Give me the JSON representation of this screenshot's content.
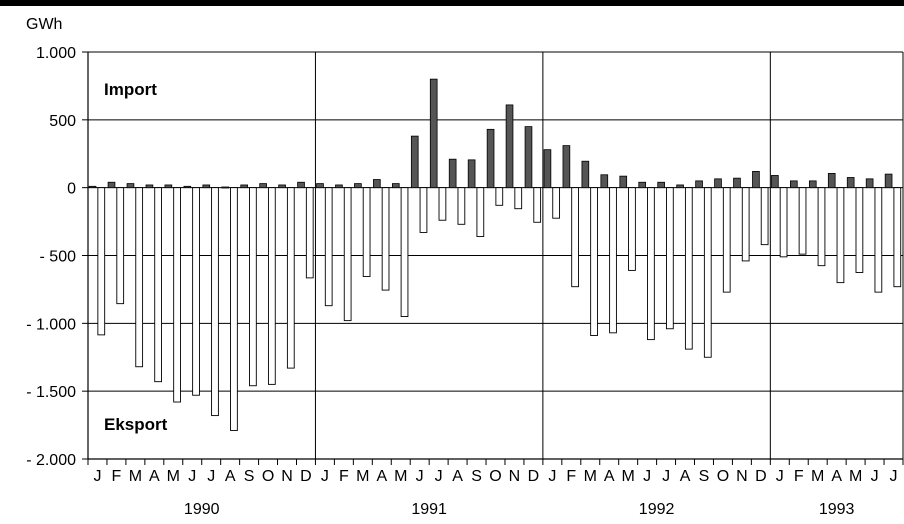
{
  "chart_data": {
    "type": "bar",
    "unit_label": "GWh",
    "annotations": {
      "import": "Import",
      "export": "Eksport"
    },
    "ylim": [
      -2000,
      1000
    ],
    "y_ticks": [
      {
        "value": 1000,
        "label": "1.000"
      },
      {
        "value": 500,
        "label": "500"
      },
      {
        "value": 0,
        "label": "0"
      },
      {
        "value": -500,
        "label": "- 500"
      },
      {
        "value": -1000,
        "label": "- 1.000"
      },
      {
        "value": -1500,
        "label": "- 1.500"
      },
      {
        "value": -2000,
        "label": "- 2.000"
      }
    ],
    "grid": true,
    "months": [
      "J",
      "F",
      "M",
      "A",
      "M",
      "J",
      "J",
      "A",
      "S",
      "O",
      "N",
      "D",
      "J",
      "F",
      "M",
      "A",
      "M",
      "J",
      "J",
      "A",
      "S",
      "O",
      "N",
      "D",
      "J",
      "F",
      "M",
      "A",
      "M",
      "J",
      "J",
      "A",
      "S",
      "O",
      "N",
      "D",
      "J",
      "F",
      "M",
      "A",
      "M",
      "J",
      "J"
    ],
    "years": [
      {
        "label": "1990",
        "start": 0,
        "end": 12
      },
      {
        "label": "1991",
        "start": 12,
        "end": 24
      },
      {
        "label": "1992",
        "start": 24,
        "end": 36
      },
      {
        "label": "1993",
        "start": 36,
        "end": 43
      }
    ],
    "series": [
      {
        "name": "Import",
        "color": "#555555",
        "values": [
          10,
          40,
          30,
          20,
          20,
          10,
          20,
          5,
          20,
          30,
          20,
          40,
          30,
          20,
          30,
          60,
          30,
          380,
          800,
          210,
          205,
          430,
          610,
          450,
          280,
          310,
          195,
          95,
          85,
          40,
          40,
          20,
          50,
          65,
          70,
          120,
          90,
          50,
          50,
          105,
          75,
          65,
          100
        ]
      },
      {
        "name": "Eksport",
        "color": "#ffffff",
        "values": [
          -1085,
          -855,
          -1320,
          -1430,
          -1580,
          -1530,
          -1680,
          -1790,
          -1460,
          -1450,
          -1330,
          -665,
          -870,
          -980,
          -655,
          -755,
          -950,
          -330,
          -240,
          -270,
          -360,
          -130,
          -155,
          -255,
          -225,
          -730,
          -1090,
          -1070,
          -610,
          -1120,
          -1040,
          -1190,
          -1250,
          -770,
          -540,
          -420,
          -510,
          -490,
          -575,
          -700,
          -625,
          -770,
          -730
        ]
      }
    ]
  }
}
